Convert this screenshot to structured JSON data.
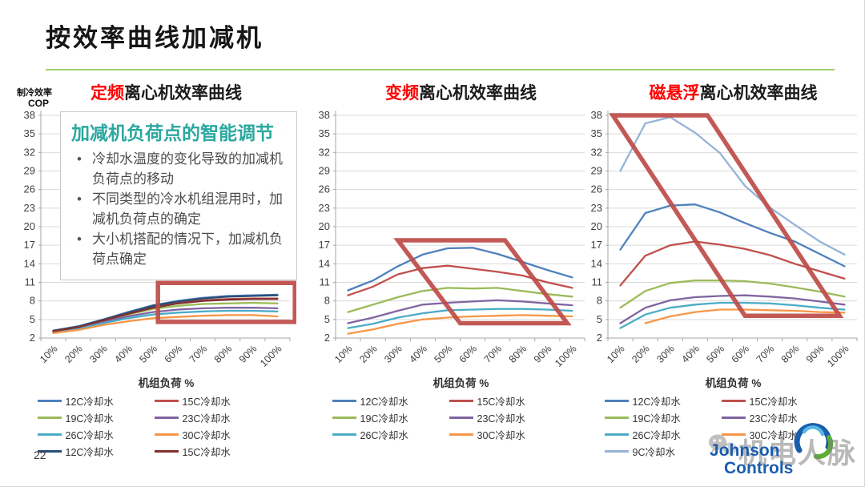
{
  "slide": {
    "title": "按效率曲线加减机",
    "title_underline_color": "#A3D06D",
    "page_number": "22"
  },
  "overlay_note": {
    "title": "加减机负荷点的智能调节",
    "title_color": "#2BA8A0",
    "bullets": [
      "冷却水温度的变化导致的加减机负荷点的移动",
      "不同类型的冷水机组混用时，加减机负荷点的确定",
      "大小机搭配的情况下，加减机负荷点确定"
    ]
  },
  "palette": {
    "title_highlight_red": "#FF0000",
    "annotation_red": "#BE4B48",
    "gridline": "#D9D9D9",
    "axis": "#A6A6A6",
    "tick_text": "#3F3F3F"
  },
  "chart_data": [
    {
      "id": "fixed-speed",
      "type": "line",
      "title_highlight": "定频",
      "title_rest": "离心机效率曲线",
      "y_axis_label": [
        "制冷效率",
        "COP"
      ],
      "xlabel": "机组负荷 %",
      "ylim": [
        2,
        38
      ],
      "yticks": [
        2,
        5,
        8,
        11,
        14,
        17,
        20,
        23,
        26,
        29,
        32,
        35,
        38
      ],
      "categories": [
        "10%",
        "20%",
        "30%",
        "40%",
        "50%",
        "60%",
        "70%",
        "80%",
        "90%",
        "100%"
      ],
      "grid": true,
      "legend_position": "bottom",
      "series": [
        {
          "name": "12C冷却水",
          "color": "#4F81BD",
          "values": [
            3.2,
            3.9,
            5.0,
            6.2,
            7.3,
            8.0,
            8.5,
            8.8,
            8.9,
            9.0
          ]
        },
        {
          "name": "15C冷却水",
          "color": "#C0504D",
          "values": [
            3.1,
            3.8,
            4.9,
            6.0,
            7.0,
            7.7,
            8.1,
            8.3,
            8.4,
            8.4
          ]
        },
        {
          "name": "19C冷却水",
          "color": "#9BBB59",
          "values": [
            3.1,
            3.7,
            4.8,
            5.8,
            6.7,
            7.2,
            7.5,
            7.6,
            7.7,
            7.6
          ]
        },
        {
          "name": "23C冷却水",
          "color": "#8064A2",
          "values": [
            3.0,
            3.6,
            4.6,
            5.5,
            6.2,
            6.6,
            6.8,
            6.9,
            6.9,
            6.8
          ]
        },
        {
          "name": "26C冷却水",
          "color": "#4BACC6",
          "values": [
            2.9,
            3.5,
            4.4,
            5.2,
            5.8,
            6.1,
            6.3,
            6.4,
            6.4,
            6.3
          ]
        },
        {
          "name": "30C冷却水",
          "color": "#F79646",
          "values": [
            2.8,
            3.3,
            4.1,
            4.7,
            5.2,
            5.4,
            5.6,
            5.7,
            5.7,
            5.5
          ]
        },
        {
          "name": "12C冷却水",
          "color": "#2A4E77",
          "values": [
            3.2,
            3.85,
            4.95,
            6.1,
            7.2,
            7.9,
            8.4,
            8.7,
            8.8,
            8.9
          ]
        },
        {
          "name": "15C冷却水",
          "color": "#81312F",
          "values": [
            3.1,
            3.75,
            4.85,
            5.9,
            6.9,
            7.6,
            8.0,
            8.2,
            8.3,
            8.3
          ]
        }
      ],
      "annotation": {
        "shape": "rectangle",
        "color": "#BE4B48",
        "points": [
          [
            0.47,
            10.9
          ],
          [
            1.02,
            10.9
          ],
          [
            1.02,
            4.6
          ],
          [
            0.47,
            4.6
          ]
        ]
      }
    },
    {
      "id": "variable-speed",
      "type": "line",
      "title_highlight": "变频",
      "title_rest": "离心机效率曲线",
      "y_axis_label": null,
      "xlabel": "机组负荷 %",
      "ylim": [
        2,
        38
      ],
      "yticks": [
        2,
        5,
        8,
        11,
        14,
        17,
        20,
        23,
        26,
        29,
        32,
        35,
        38
      ],
      "categories": [
        "10%",
        "20%",
        "30%",
        "40%",
        "50%",
        "60%",
        "70%",
        "80%",
        "90%",
        "100%"
      ],
      "grid": true,
      "legend_position": "bottom",
      "series": [
        {
          "name": "12C冷却水",
          "color": "#4F81BD",
          "values": [
            9.7,
            11.3,
            13.6,
            15.5,
            16.5,
            16.6,
            15.6,
            14.3,
            13.0,
            11.8
          ]
        },
        {
          "name": "15C冷却水",
          "color": "#C0504D",
          "values": [
            8.9,
            10.3,
            12.3,
            13.3,
            13.7,
            13.2,
            12.7,
            12.1,
            11.0,
            10.1
          ]
        },
        {
          "name": "19C冷却水",
          "color": "#9BBB59",
          "values": [
            6.2,
            7.4,
            8.6,
            9.6,
            10.1,
            10.0,
            10.1,
            9.6,
            9.1,
            8.7
          ]
        },
        {
          "name": "23C冷却水",
          "color": "#8064A2",
          "values": [
            4.4,
            5.3,
            6.4,
            7.4,
            7.7,
            7.9,
            8.1,
            7.9,
            7.6,
            7.3
          ]
        },
        {
          "name": "26C冷却水",
          "color": "#4BACC6",
          "values": [
            3.6,
            4.3,
            5.3,
            6.0,
            6.5,
            6.6,
            6.7,
            6.7,
            6.6,
            6.4
          ]
        },
        {
          "name": "30C冷却水",
          "color": "#F79646",
          "values": [
            2.7,
            3.4,
            4.3,
            5.0,
            5.3,
            5.5,
            5.6,
            5.7,
            5.6,
            5.5
          ]
        }
      ],
      "annotation": {
        "shape": "parallelogram",
        "color": "#BE4B48",
        "points": [
          [
            0.25,
            17.8
          ],
          [
            0.68,
            17.8
          ],
          [
            0.93,
            4.4
          ],
          [
            0.5,
            4.4
          ]
        ]
      }
    },
    {
      "id": "magnetic-levitation",
      "type": "line",
      "title_highlight": "磁悬浮",
      "title_rest": "离心机效率曲线",
      "y_axis_label": null,
      "xlabel": "机组负荷 %",
      "ylim": [
        2,
        38
      ],
      "yticks": [
        2,
        5,
        8,
        11,
        14,
        17,
        20,
        23,
        26,
        29,
        32,
        35,
        38
      ],
      "categories": [
        "10%",
        "20%",
        "30%",
        "40%",
        "50%",
        "60%",
        "70%",
        "80%",
        "90%",
        "100%"
      ],
      "grid": true,
      "legend_position": "bottom",
      "series": [
        {
          "name": "12C冷却水",
          "color": "#4F81BD",
          "values": [
            16.3,
            22.2,
            23.4,
            23.6,
            22.3,
            20.6,
            19.0,
            17.6,
            15.6,
            13.6
          ]
        },
        {
          "name": "15C冷却水",
          "color": "#C0504D",
          "values": [
            10.5,
            15.3,
            17.0,
            17.6,
            17.1,
            16.4,
            15.4,
            14.0,
            12.8,
            11.6
          ]
        },
        {
          "name": "19C冷却水",
          "color": "#9BBB59",
          "values": [
            6.9,
            9.6,
            10.9,
            11.3,
            11.3,
            11.2,
            10.8,
            10.2,
            9.5,
            8.7
          ]
        },
        {
          "name": "23C冷却水",
          "color": "#8064A2",
          "values": [
            4.4,
            6.9,
            8.1,
            8.6,
            8.8,
            8.9,
            8.7,
            8.4,
            7.9,
            7.4
          ]
        },
        {
          "name": "26C冷却水",
          "color": "#4BACC6",
          "values": [
            3.6,
            5.8,
            6.9,
            7.4,
            7.7,
            7.7,
            7.6,
            7.3,
            6.9,
            6.6
          ]
        },
        {
          "name": "30C冷却水",
          "color": "#F79646",
          "values": [
            null,
            4.4,
            5.5,
            6.2,
            6.6,
            6.6,
            6.5,
            6.4,
            6.2,
            6.1
          ]
        },
        {
          "name": "9C冷却水",
          "color": "#95B3D7",
          "values": [
            29.0,
            36.7,
            37.7,
            35.2,
            31.9,
            26.6,
            23.1,
            20.3,
            17.6,
            15.5
          ]
        }
      ],
      "annotation": {
        "shape": "parallelogram",
        "color": "#BE4B48",
        "points": [
          [
            0.02,
            38.0
          ],
          [
            0.4,
            38.0
          ],
          [
            0.93,
            5.6
          ],
          [
            0.55,
            5.6
          ]
        ]
      }
    }
  ],
  "footer": {
    "watermark": "机电人脉",
    "logo_line1": "Johnson",
    "logo_line2": "Controls",
    "logo_color": "#1A5DAD"
  }
}
